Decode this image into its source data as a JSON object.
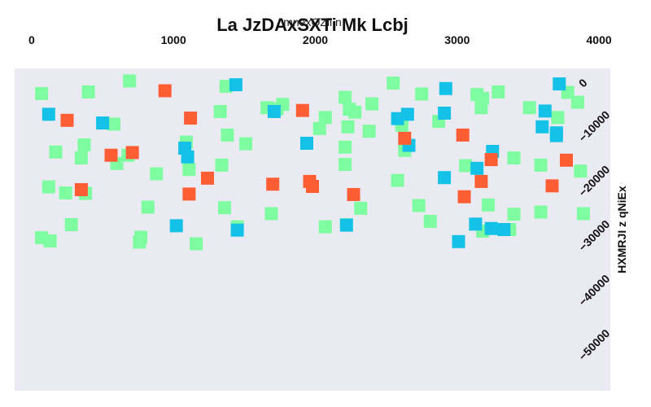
{
  "chart_data": {
    "type": "scatter",
    "title": "La JzDAxSXTi Mk Lcbj",
    "xlabel": "mnexOZii n",
    "ylabel": "HXMRJI z qNiEx",
    "xlim": [
      -120,
      4080
    ],
    "ylim": [
      3000,
      -56000
    ],
    "x_ticks": [
      0,
      1000,
      2000,
      3000,
      4000
    ],
    "x_tick_labels": [
      "0",
      "1000",
      "2000",
      "3000",
      "4000"
    ],
    "y_ticks": [
      0,
      -10000,
      -20000,
      -30000,
      -40000,
      -50000
    ],
    "y_tick_labels": [
      "0",
      "−10000",
      "−20000",
      "−30000",
      "−40000",
      "−50000"
    ],
    "grid": false,
    "background": "#eaeaf2",
    "marker": "square",
    "series": [
      {
        "color": "#7dfca0",
        "points": [
          {
            "x": 70,
            "y": -1600
          },
          {
            "x": 690,
            "y": 700
          },
          {
            "x": 400,
            "y": -1300
          },
          {
            "x": 1370,
            "y": -300
          },
          {
            "x": 2550,
            "y": 300
          },
          {
            "x": 2750,
            "y": -1700
          },
          {
            "x": 3140,
            "y": -1800
          },
          {
            "x": 3290,
            "y": -1300
          },
          {
            "x": 3780,
            "y": -1400
          },
          {
            "x": 3850,
            "y": -3200
          },
          {
            "x": 3180,
            "y": -2500
          },
          {
            "x": 2210,
            "y": -2300
          },
          {
            "x": 2400,
            "y": -3500
          },
          {
            "x": 1770,
            "y": -3600
          },
          {
            "x": 1660,
            "y": -4200
          },
          {
            "x": 1730,
            "y": -4400
          },
          {
            "x": 3170,
            "y": -4200
          },
          {
            "x": 3510,
            "y": -4200
          },
          {
            "x": 1330,
            "y": -4900
          },
          {
            "x": 2240,
            "y": -4500
          },
          {
            "x": 2280,
            "y": -5000
          },
          {
            "x": 2070,
            "y": -6000
          },
          {
            "x": 3710,
            "y": -6000
          },
          {
            "x": 580,
            "y": -7200
          },
          {
            "x": 2870,
            "y": -6700
          },
          {
            "x": 2610,
            "y": -7400
          },
          {
            "x": 2030,
            "y": -8000
          },
          {
            "x": 2230,
            "y": -7700
          },
          {
            "x": 2380,
            "y": -8500
          },
          {
            "x": 1380,
            "y": -9200
          },
          {
            "x": 1090,
            "y": -10500
          },
          {
            "x": 1510,
            "y": -10800
          },
          {
            "x": 370,
            "y": -11000
          },
          {
            "x": 2210,
            "y": -11400
          },
          {
            "x": 2630,
            "y": -12000
          },
          {
            "x": 170,
            "y": -12300
          },
          {
            "x": 680,
            "y": -12900
          },
          {
            "x": 350,
            "y": -13400
          },
          {
            "x": 3400,
            "y": -13400
          },
          {
            "x": 600,
            "y": -14400
          },
          {
            "x": 1340,
            "y": -14700
          },
          {
            "x": 2210,
            "y": -14600
          },
          {
            "x": 3060,
            "y": -14800
          },
          {
            "x": 3590,
            "y": -14700
          },
          {
            "x": 1110,
            "y": -15500
          },
          {
            "x": 3870,
            "y": -15800
          },
          {
            "x": 880,
            "y": -16300
          },
          {
            "x": 2580,
            "y": -17500
          },
          {
            "x": 120,
            "y": -18700
          },
          {
            "x": 240,
            "y": -19800
          },
          {
            "x": 380,
            "y": -19900
          },
          {
            "x": 820,
            "y": -22400
          },
          {
            "x": 1360,
            "y": -22500
          },
          {
            "x": 2320,
            "y": -22600
          },
          {
            "x": 2730,
            "y": -22100
          },
          {
            "x": 3220,
            "y": -22000
          },
          {
            "x": 1690,
            "y": -23600
          },
          {
            "x": 3400,
            "y": -23700
          },
          {
            "x": 3590,
            "y": -23300
          },
          {
            "x": 3890,
            "y": -23600
          },
          {
            "x": 2810,
            "y": -25000
          },
          {
            "x": 280,
            "y": -25600
          },
          {
            "x": 1450,
            "y": -26000
          },
          {
            "x": 2070,
            "y": -26000
          },
          {
            "x": 2220,
            "y": -25600
          },
          {
            "x": 3180,
            "y": -26800
          },
          {
            "x": 3370,
            "y": -26500
          },
          {
            "x": 70,
            "y": -28000
          },
          {
            "x": 130,
            "y": -28600
          },
          {
            "x": 770,
            "y": -27900
          },
          {
            "x": 760,
            "y": -28800
          },
          {
            "x": 1160,
            "y": -29100
          }
        ]
      },
      {
        "color": "#14c2e8",
        "points": [
          {
            "x": 1440,
            "y": 0
          },
          {
            "x": 3720,
            "y": 150
          },
          {
            "x": 2920,
            "y": -700
          },
          {
            "x": 1710,
            "y": -4900
          },
          {
            "x": 2910,
            "y": -5200
          },
          {
            "x": 2650,
            "y": -5400
          },
          {
            "x": 120,
            "y": -5400
          },
          {
            "x": 3620,
            "y": -4800
          },
          {
            "x": 2580,
            "y": -6200
          },
          {
            "x": 500,
            "y": -7000
          },
          {
            "x": 3600,
            "y": -7700
          },
          {
            "x": 3700,
            "y": -8800
          },
          {
            "x": 3700,
            "y": -9300
          },
          {
            "x": 1940,
            "y": -10700
          },
          {
            "x": 2660,
            "y": -11100
          },
          {
            "x": 1080,
            "y": -11600
          },
          {
            "x": 3250,
            "y": -12200
          },
          {
            "x": 1100,
            "y": -13200
          },
          {
            "x": 3140,
            "y": -15300
          },
          {
            "x": 2910,
            "y": -17000
          },
          {
            "x": 1450,
            "y": -26600
          },
          {
            "x": 1020,
            "y": -25800
          },
          {
            "x": 2220,
            "y": -25700
          },
          {
            "x": 3130,
            "y": -25500
          },
          {
            "x": 3240,
            "y": -26300
          },
          {
            "x": 3330,
            "y": -26500
          },
          {
            "x": 3010,
            "y": -28700
          }
        ]
      },
      {
        "color": "#ff5e35",
        "points": [
          {
            "x": 940,
            "y": -1100
          },
          {
            "x": 1910,
            "y": -4700
          },
          {
            "x": 250,
            "y": -6500
          },
          {
            "x": 1120,
            "y": -6100
          },
          {
            "x": 3040,
            "y": -9200
          },
          {
            "x": 2630,
            "y": -9800
          },
          {
            "x": 710,
            "y": -12400
          },
          {
            "x": 560,
            "y": -12900
          },
          {
            "x": 3240,
            "y": -13700
          },
          {
            "x": 3770,
            "y": -13800
          },
          {
            "x": 1240,
            "y": -17100
          },
          {
            "x": 1700,
            "y": -18200
          },
          {
            "x": 1960,
            "y": -17700
          },
          {
            "x": 1980,
            "y": -18600
          },
          {
            "x": 3170,
            "y": -17700
          },
          {
            "x": 3670,
            "y": -18500
          },
          {
            "x": 350,
            "y": -19200
          },
          {
            "x": 1110,
            "y": -20000
          },
          {
            "x": 2270,
            "y": -20100
          },
          {
            "x": 3050,
            "y": -20500
          }
        ]
      }
    ]
  }
}
